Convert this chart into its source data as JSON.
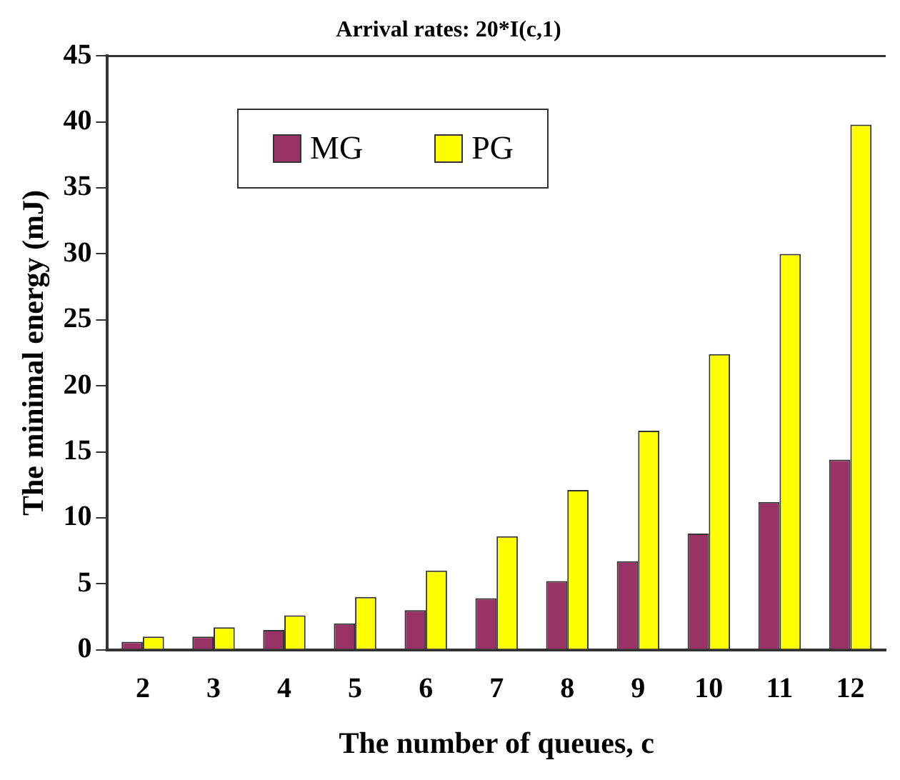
{
  "chart_data": {
    "type": "bar",
    "title": "Arrival rates: 20*I(c,1)",
    "xlabel": "The number of queues, c",
    "ylabel": "The minimal energy (mJ)",
    "categories": [
      "2",
      "3",
      "4",
      "5",
      "6",
      "7",
      "8",
      "9",
      "10",
      "11",
      "12"
    ],
    "series": [
      {
        "name": "MG",
        "color": "#993366",
        "values": [
          0.6,
          1.0,
          1.5,
          2.0,
          3.0,
          3.9,
          5.2,
          6.7,
          8.8,
          11.2,
          14.4
        ]
      },
      {
        "name": "PG",
        "color": "#ffff00",
        "values": [
          1.0,
          1.7,
          2.6,
          4.0,
          6.0,
          8.6,
          12.1,
          16.6,
          22.4,
          30.0,
          39.8
        ]
      }
    ],
    "ylim": [
      0,
      45
    ],
    "yticks": [
      0,
      5,
      10,
      15,
      20,
      25,
      30,
      35,
      40,
      45
    ],
    "grid": false,
    "legend": "top left"
  }
}
